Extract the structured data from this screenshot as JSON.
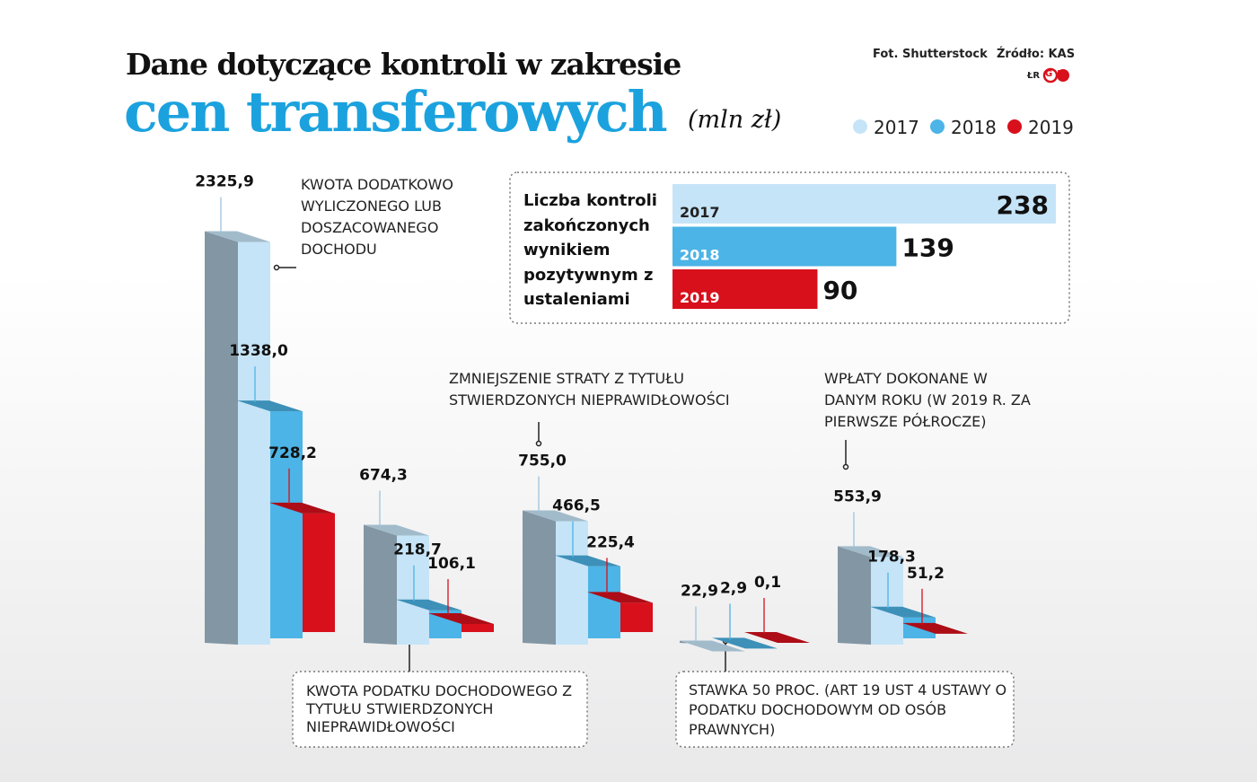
{
  "chart_data": [
    {
      "type": "bar3d",
      "title": "Dane dotyczące kontroli w zakresie",
      "subtitle": "cen transferowych",
      "unit": "(mln zł)",
      "photo_credit": "Fot. Shutterstock",
      "source": "Źródło: KAS",
      "author": "ŁR",
      "logo": "GP",
      "categories": [
        "KWOTA DODATKOWO WYLICZONEGO LUB DOSZACOWANEGO DOCHODU",
        "KWOTA PODATKU DOCHODOWEGO Z TYTUŁU STWIERDZONYCH NIEPRAWIDŁOWOŚCI",
        "ZMNIEJSZENIE STRATY Z TYTUŁU STWIERDZONYCH NIEPRAWIDŁOWOŚCI",
        "STAWKA 50 PROC. (ART 19 UST 4 USTAWY O PODATKU DOCHODOWYM OD OSÓB PRAWNYCH)",
        "WPŁATY DOKONANE W DANYM ROKU (W 2019 R. ZA PIERWSZE PÓŁROCZE)"
      ],
      "series": [
        {
          "name": "2017",
          "color": "#c6e4f7",
          "values": [
            2325.9,
            674.3,
            755.0,
            22.9,
            553.9
          ],
          "value_labels": [
            "2325,9",
            "674,3",
            "755,0",
            "22,9",
            "553,9"
          ]
        },
        {
          "name": "2018",
          "color": "#4cb4e6",
          "values": [
            1338.0,
            218.7,
            466.5,
            2.9,
            178.3
          ],
          "value_labels": [
            "1338,0",
            "218,7",
            "466,5",
            "2,9",
            "178,3"
          ]
        },
        {
          "name": "2019",
          "color": "#d8101c",
          "values": [
            728.2,
            106.1,
            225.4,
            0.1,
            51.2
          ],
          "value_labels": [
            "728,2",
            "106,1",
            "225,4",
            "0,1",
            "51,2"
          ]
        }
      ],
      "legend": "top-right"
    },
    {
      "type": "hbar",
      "title": "Liczba kontroli zakończonych wynikiem pozytywnym z ustaleniami",
      "categories": [
        "2017",
        "2018",
        "2019"
      ],
      "values": [
        238,
        139,
        90
      ],
      "colors": [
        "#c6e4f7",
        "#4cb4e6",
        "#d8101c"
      ]
    }
  ]
}
